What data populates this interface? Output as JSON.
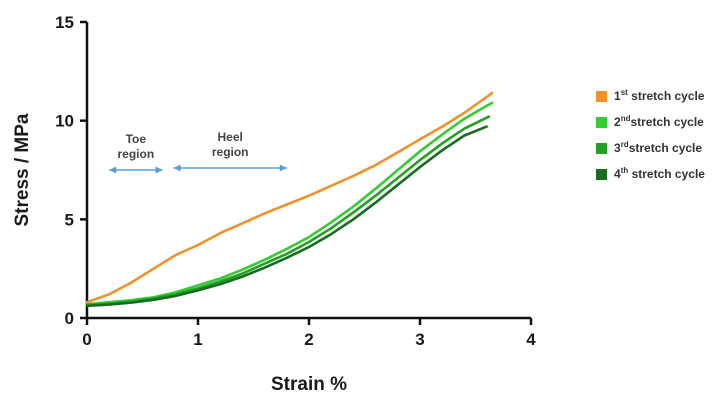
{
  "chart_data": {
    "type": "line",
    "xlabel": "Strain %",
    "ylabel": "Stress / MPa",
    "xlim": [
      0,
      4
    ],
    "ylim": [
      0,
      15
    ],
    "xticks": [
      "0",
      "1",
      "2",
      "3",
      "4"
    ],
    "yticks": [
      "0",
      "5",
      "10",
      "15"
    ],
    "grid": false,
    "legend_position": "right",
    "annotations": [
      {
        "lines": [
          "Toe",
          "region"
        ],
        "arrow_x": [
          0.2,
          0.68
        ],
        "arrow_y": 7.5
      },
      {
        "lines": [
          "Heel",
          "region"
        ],
        "arrow_x": [
          0.78,
          1.8
        ],
        "arrow_y": 7.6
      }
    ],
    "series": [
      {
        "name": "1st stretch cycle",
        "label_main": "1",
        "label_sup": "st",
        "label_rest": " stretch cycle",
        "color": "#f0922b",
        "x": [
          0,
          0.2,
          0.4,
          0.6,
          0.8,
          1.0,
          1.2,
          1.4,
          1.6,
          1.8,
          2.0,
          2.2,
          2.4,
          2.6,
          2.8,
          3.0,
          3.2,
          3.4,
          3.6,
          3.65
        ],
        "y": [
          0.8,
          1.2,
          1.8,
          2.5,
          3.2,
          3.7,
          4.3,
          4.8,
          5.3,
          5.75,
          6.2,
          6.7,
          7.2,
          7.75,
          8.4,
          9.05,
          9.7,
          10.4,
          11.2,
          11.4
        ]
      },
      {
        "name": "2nd stretch cycle",
        "label_main": "2",
        "label_sup": "nd",
        "label_rest": "stretch cycle",
        "color": "#33cc33",
        "x": [
          0,
          0.2,
          0.4,
          0.6,
          0.8,
          1.0,
          1.2,
          1.4,
          1.6,
          1.8,
          2.0,
          2.2,
          2.4,
          2.6,
          2.8,
          3.0,
          3.2,
          3.4,
          3.6,
          3.65
        ],
        "y": [
          0.7,
          0.8,
          0.9,
          1.05,
          1.3,
          1.65,
          2.0,
          2.45,
          2.95,
          3.5,
          4.1,
          4.85,
          5.65,
          6.55,
          7.5,
          8.45,
          9.3,
          10.1,
          10.75,
          10.9
        ]
      },
      {
        "name": "3rd stretch cycle",
        "label_main": "3",
        "label_sup": "rd",
        "label_rest": "stretch cycle",
        "color": "#249e24",
        "x": [
          0,
          0.2,
          0.4,
          0.6,
          0.8,
          1.0,
          1.2,
          1.4,
          1.6,
          1.8,
          2.0,
          2.2,
          2.4,
          2.6,
          2.8,
          3.0,
          3.2,
          3.4,
          3.62
        ],
        "y": [
          0.65,
          0.72,
          0.82,
          0.98,
          1.2,
          1.5,
          1.85,
          2.25,
          2.75,
          3.25,
          3.85,
          4.55,
          5.35,
          6.2,
          7.1,
          8.0,
          8.85,
          9.6,
          10.2
        ]
      },
      {
        "name": "4th stretch cycle",
        "label_main": "4",
        "label_sup": "th",
        "label_rest": " stretch cycle",
        "color": "#1a6b22",
        "x": [
          0,
          0.2,
          0.4,
          0.6,
          0.8,
          1.0,
          1.2,
          1.4,
          1.6,
          1.8,
          2.0,
          2.2,
          2.4,
          2.6,
          2.8,
          3.0,
          3.2,
          3.4,
          3.6
        ],
        "y": [
          0.62,
          0.68,
          0.78,
          0.92,
          1.12,
          1.4,
          1.72,
          2.1,
          2.55,
          3.05,
          3.6,
          4.25,
          5.0,
          5.85,
          6.75,
          7.65,
          8.5,
          9.25,
          9.7
        ]
      }
    ]
  }
}
